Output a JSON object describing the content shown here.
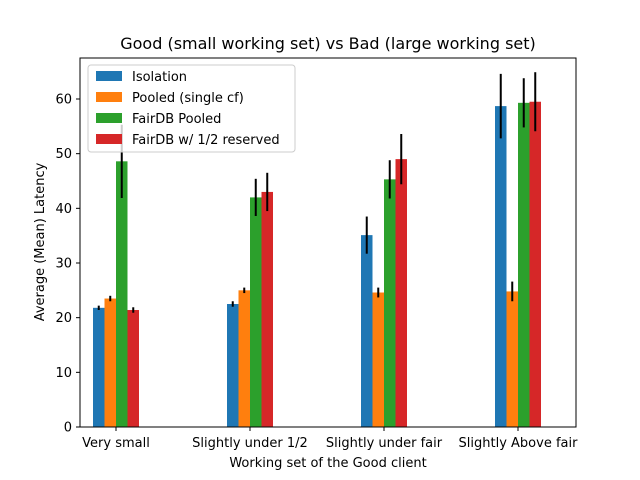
{
  "chart_data": {
    "type": "bar",
    "title": "Good (small working set) vs Bad (large working set)",
    "xlabel": "Working set of the Good client",
    "ylabel": "Average (Mean) Latency",
    "categories": [
      "Very small",
      "Slightly under 1/2",
      "Slightly under fair",
      "Slightly Above fair"
    ],
    "ylim": [
      0,
      67.5
    ],
    "yticks": [
      0,
      10,
      20,
      30,
      40,
      50,
      60
    ],
    "grid": false,
    "legend_position": "top-left",
    "series": [
      {
        "name": "Isolation",
        "color": "#1f77b4",
        "values": [
          21.8,
          22.5,
          35.1,
          58.7
        ],
        "errors": [
          0.4,
          0.5,
          3.4,
          5.9
        ]
      },
      {
        "name": "Pooled (single cf)",
        "color": "#ff7f0e",
        "values": [
          23.5,
          25.0,
          24.6,
          24.8
        ],
        "errors": [
          0.5,
          0.5,
          0.9,
          1.8
        ]
      },
      {
        "name": "FairDB Pooled",
        "color": "#2ca02c",
        "values": [
          48.6,
          42.0,
          45.3,
          59.3
        ],
        "errors": [
          6.7,
          3.4,
          3.5,
          4.5
        ]
      },
      {
        "name": "FairDB w/ 1/2 reserved",
        "color": "#d62728",
        "values": [
          21.4,
          43.0,
          49.0,
          59.5
        ],
        "errors": [
          0.5,
          3.5,
          4.6,
          5.4
        ]
      }
    ]
  }
}
